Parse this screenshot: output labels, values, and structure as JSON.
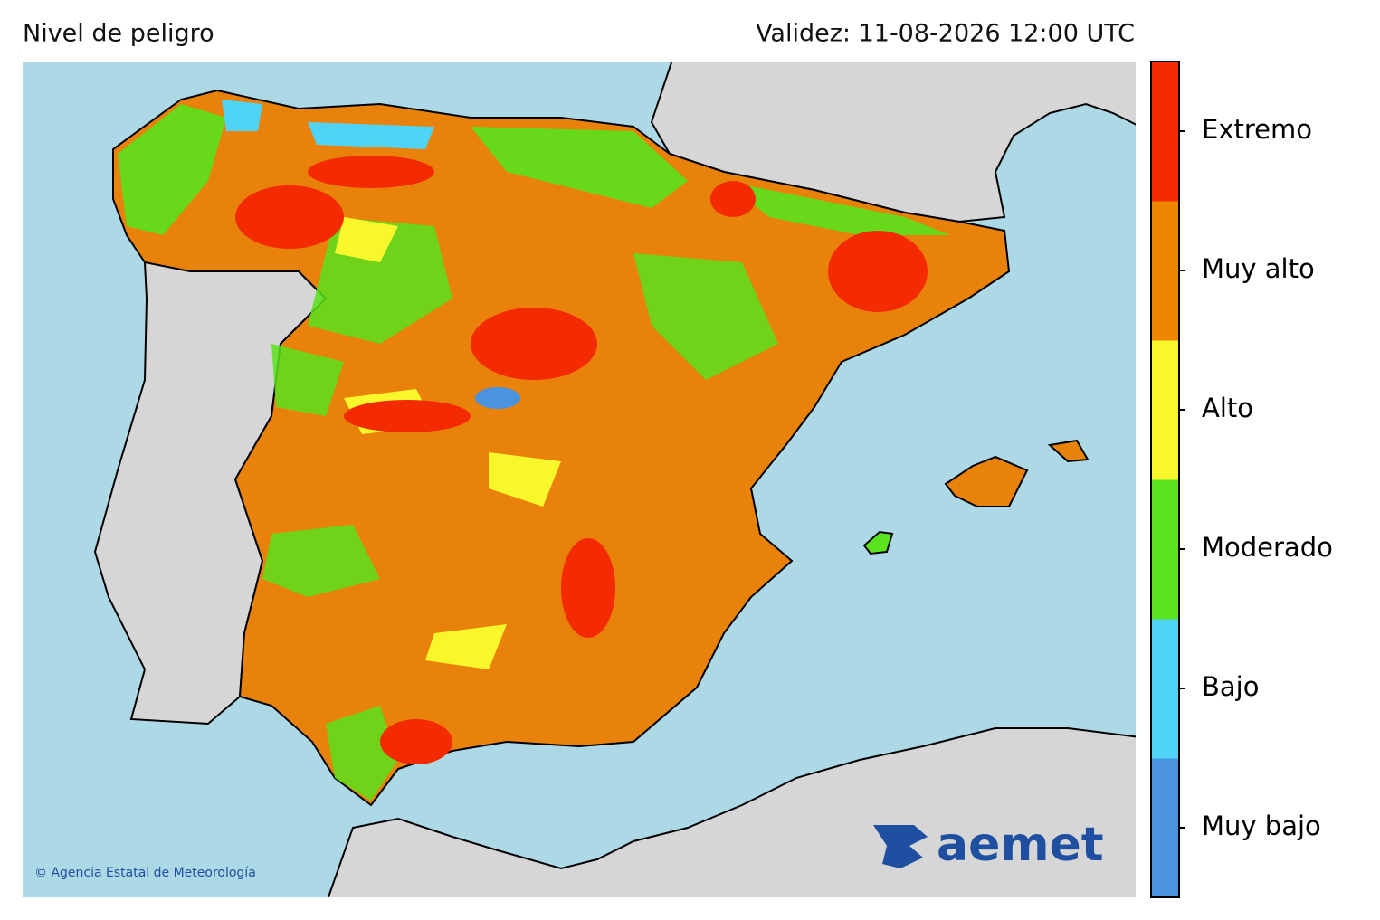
{
  "header": {
    "title": "Nivel de peligro",
    "validity": "Validez: 11-08-2026 12:00 UTC"
  },
  "legend": {
    "levels": [
      {
        "label": "Muy bajo",
        "color": "#4a93e0"
      },
      {
        "label": "Bajo",
        "color": "#4fd3f6"
      },
      {
        "label": "Moderado",
        "color": "#5ae21c"
      },
      {
        "label": "Alto",
        "color": "#f7f72c"
      },
      {
        "label": "Muy alto",
        "color": "#ee8600"
      },
      {
        "label": "Extremo",
        "color": "#f42a00"
      }
    ]
  },
  "credit": "© Agencia Estatal de Meteorología",
  "logo": "aemet"
}
